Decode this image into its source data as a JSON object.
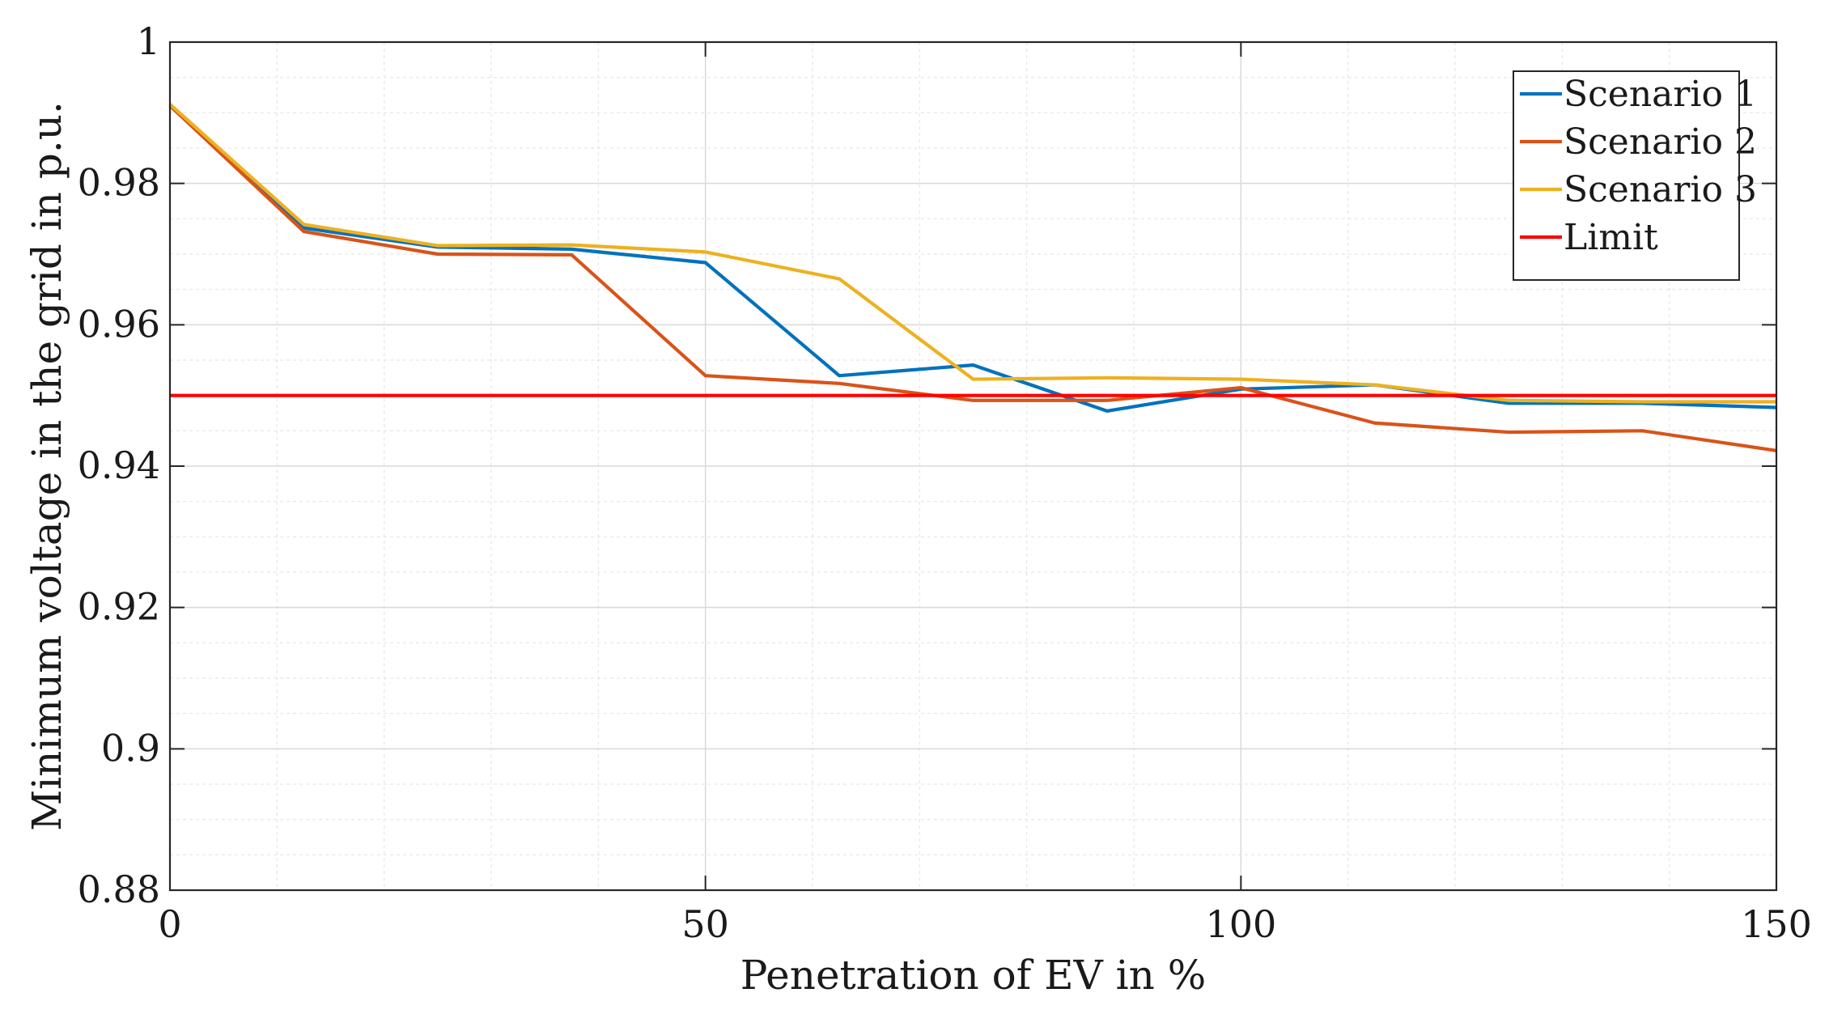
{
  "chart_data": {
    "type": "line",
    "title": "",
    "xlabel": "Penetration of EV in %",
    "ylabel": "Minimum voltage in the grid in p.u.",
    "xlim": [
      0,
      150
    ],
    "ylim": [
      0.88,
      1.0
    ],
    "xticks": [
      0,
      50,
      100,
      150
    ],
    "xtick_labels": [
      "0",
      "50",
      "100",
      "150"
    ],
    "yticks": [
      0.88,
      0.9,
      0.92,
      0.94,
      0.96,
      0.98,
      1.0
    ],
    "ytick_labels": [
      "0.88",
      "0.9",
      "0.92",
      "0.94",
      "0.96",
      "0.98",
      "1"
    ],
    "x_minor_step": 10,
    "y_minor_step": 0.005,
    "grid": true,
    "legend_position": "top-right",
    "series": [
      {
        "name": "Scenario 1",
        "color": "#0072BD",
        "x": [
          0,
          12.5,
          25,
          37.5,
          50,
          62.5,
          75,
          87.5,
          100,
          112.5,
          125,
          137.5,
          150
        ],
        "values": [
          0.991,
          0.9737,
          0.971,
          0.9707,
          0.9688,
          0.9528,
          0.9543,
          0.9478,
          0.9509,
          0.9515,
          0.9489,
          0.9489,
          0.9483
        ]
      },
      {
        "name": "Scenario 2",
        "color": "#D95319",
        "x": [
          0,
          12.5,
          25,
          37.5,
          50,
          62.5,
          75,
          87.5,
          100,
          112.5,
          125,
          137.5,
          150
        ],
        "values": [
          0.991,
          0.9732,
          0.97,
          0.9699,
          0.9528,
          0.9517,
          0.9493,
          0.9493,
          0.9511,
          0.9461,
          0.9448,
          0.945,
          0.9422
        ]
      },
      {
        "name": "Scenario 3",
        "color": "#EDB120",
        "x": [
          0,
          12.5,
          25,
          37.5,
          50,
          62.5,
          75,
          87.5,
          100,
          112.5,
          125,
          137.5,
          150
        ],
        "values": [
          0.9912,
          0.9742,
          0.9712,
          0.9713,
          0.9703,
          0.9665,
          0.9523,
          0.9525,
          0.9523,
          0.9515,
          0.9493,
          0.9491,
          0.9491
        ]
      },
      {
        "name": "Limit",
        "color": "#FF0000",
        "x": [
          0,
          150
        ],
        "values": [
          0.95,
          0.95
        ]
      }
    ]
  }
}
